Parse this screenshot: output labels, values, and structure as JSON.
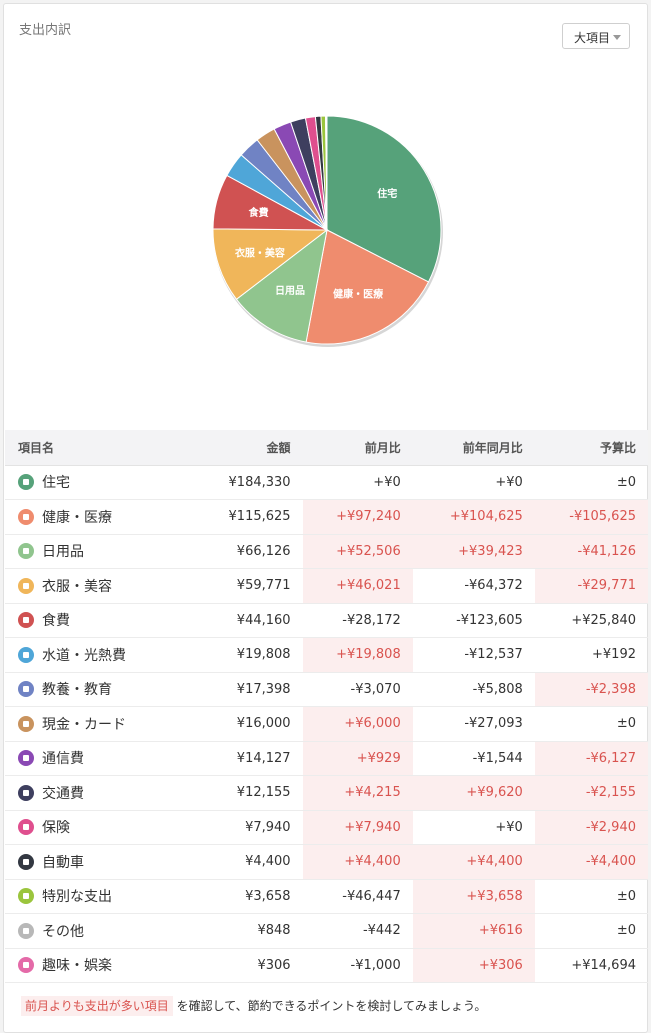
{
  "title": "支出内訳",
  "dropdown": {
    "value": "大項目"
  },
  "chart_data": {
    "type": "pie",
    "slices": [
      {
        "label": "住宅",
        "value": 184330,
        "color": "#56a27a"
      },
      {
        "label": "健康・医療",
        "value": 115625,
        "color": "#ef8c6e"
      },
      {
        "label": "日用品",
        "value": 66126,
        "color": "#90c58e"
      },
      {
        "label": "衣服・美容",
        "value": 59771,
        "color": "#f0b65a"
      },
      {
        "label": "食費",
        "value": 44160,
        "color": "#d05252"
      },
      {
        "label": "水道・光熱費",
        "value": 19808,
        "color": "#4fa6d8"
      },
      {
        "label": "教養・教育",
        "value": 17398,
        "color": "#7083c4"
      },
      {
        "label": "現金・カード",
        "value": 16000,
        "color": "#c9935e"
      },
      {
        "label": "通信費",
        "value": 14127,
        "color": "#8a49b4"
      },
      {
        "label": "交通費",
        "value": 12155,
        "color": "#3e3f5f"
      },
      {
        "label": "保険",
        "value": 7940,
        "color": "#df4f8e"
      },
      {
        "label": "自動車",
        "value": 4400,
        "color": "#333842"
      },
      {
        "label": "特別な支出",
        "value": 3658,
        "color": "#9bc53d"
      },
      {
        "label": "その他",
        "value": 848,
        "color": "#b8b8b8"
      },
      {
        "label": "趣味・娯楽",
        "value": 306,
        "color": "#e46aa8"
      }
    ],
    "shown_labels": [
      "住宅",
      "健康・医療",
      "日用品",
      "衣服・美容",
      "食費"
    ]
  },
  "table": {
    "headers": {
      "name": "項目名",
      "amount": "金額",
      "mom": "前月比",
      "yoy": "前年同月比",
      "budget": "予算比"
    },
    "rows": [
      {
        "icon": "house-icon",
        "color": "#56a27a",
        "name": "住宅",
        "amount": "¥184,330",
        "mom": "+¥0",
        "yoy": "+¥0",
        "budget": "±0",
        "hl": [
          false,
          false,
          false
        ]
      },
      {
        "icon": "medical-cross-icon",
        "color": "#ef8c6e",
        "name": "健康・医療",
        "amount": "¥115,625",
        "mom": "+¥97,240",
        "yoy": "+¥104,625",
        "budget": "-¥105,625",
        "hl": [
          true,
          true,
          true
        ]
      },
      {
        "icon": "brush-icon",
        "color": "#90c58e",
        "name": "日用品",
        "amount": "¥66,126",
        "mom": "+¥52,506",
        "yoy": "+¥39,423",
        "budget": "-¥41,126",
        "hl": [
          true,
          true,
          true
        ]
      },
      {
        "icon": "shirt-icon",
        "color": "#f0b65a",
        "name": "衣服・美容",
        "amount": "¥59,771",
        "mom": "+¥46,021",
        "yoy": "-¥64,372",
        "budget": "-¥29,771",
        "hl": [
          true,
          false,
          true
        ]
      },
      {
        "icon": "fork-knife-icon",
        "color": "#d05252",
        "name": "食費",
        "amount": "¥44,160",
        "mom": "-¥28,172",
        "yoy": "-¥123,605",
        "budget": "+¥25,840",
        "hl": [
          false,
          false,
          false
        ]
      },
      {
        "icon": "water-faucet-icon",
        "color": "#4fa6d8",
        "name": "水道・光熱費",
        "amount": "¥19,808",
        "mom": "+¥19,808",
        "yoy": "-¥12,537",
        "budget": "+¥192",
        "hl": [
          true,
          false,
          false
        ]
      },
      {
        "icon": "book-icon",
        "color": "#7083c4",
        "name": "教養・教育",
        "amount": "¥17,398",
        "mom": "-¥3,070",
        "yoy": "-¥5,808",
        "budget": "-¥2,398",
        "hl": [
          false,
          false,
          true
        ]
      },
      {
        "icon": "wallet-icon",
        "color": "#c9935e",
        "name": "現金・カード",
        "amount": "¥16,000",
        "mom": "+¥6,000",
        "yoy": "-¥27,093",
        "budget": "±0",
        "hl": [
          true,
          false,
          false
        ]
      },
      {
        "icon": "antenna-icon",
        "color": "#8a49b4",
        "name": "通信費",
        "amount": "¥14,127",
        "mom": "+¥929",
        "yoy": "-¥1,544",
        "budget": "-¥6,127",
        "hl": [
          true,
          false,
          true
        ]
      },
      {
        "icon": "train-icon",
        "color": "#3e3f5f",
        "name": "交通費",
        "amount": "¥12,155",
        "mom": "+¥4,215",
        "yoy": "+¥9,620",
        "budget": "-¥2,155",
        "hl": [
          true,
          true,
          true
        ]
      },
      {
        "icon": "insurance-icon",
        "color": "#df4f8e",
        "name": "保険",
        "amount": "¥7,940",
        "mom": "+¥7,940",
        "yoy": "+¥0",
        "budget": "-¥2,940",
        "hl": [
          true,
          false,
          true
        ]
      },
      {
        "icon": "car-icon",
        "color": "#333842",
        "name": "自動車",
        "amount": "¥4,400",
        "mom": "+¥4,400",
        "yoy": "+¥4,400",
        "budget": "-¥4,400",
        "hl": [
          true,
          true,
          true
        ]
      },
      {
        "icon": "exclamation-icon",
        "color": "#9bc53d",
        "name": "特別な支出",
        "amount": "¥3,658",
        "mom": "-¥46,447",
        "yoy": "+¥3,658",
        "budget": "±0",
        "hl": [
          false,
          true,
          false
        ]
      },
      {
        "icon": "ellipsis-icon",
        "color": "#b8b8b8",
        "name": "その他",
        "amount": "¥848",
        "mom": "-¥442",
        "yoy": "+¥616",
        "budget": "±0",
        "hl": [
          false,
          true,
          false
        ]
      },
      {
        "icon": "star-icon",
        "color": "#e46aa8",
        "name": "趣味・娯楽",
        "amount": "¥306",
        "mom": "-¥1,000",
        "yoy": "+¥306",
        "budget": "+¥14,694",
        "hl": [
          false,
          true,
          false
        ]
      }
    ]
  },
  "footer": {
    "tag": "前月よりも支出が多い項目",
    "text": "を確認して、節約できるポイントを検討してみましょう。"
  }
}
